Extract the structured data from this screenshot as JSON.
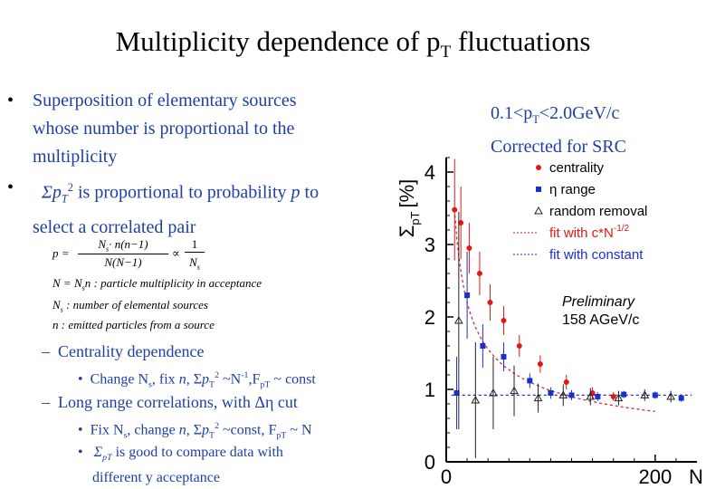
{
  "title": {
    "pre": "Multiplicity dependence of p",
    "sub": "T",
    "post": " fluctuations"
  },
  "bullets": {
    "b1": {
      "dot": "•",
      "line1": "Superposition of elementary sources",
      "line2": "whose number is proportional to the",
      "line3": "multiplicity"
    },
    "b2": {
      "dot": "•",
      "sym": "Σ",
      "p": "p",
      "T": "T",
      "two": "2",
      "rest": " is proportional to probability ",
      "prob": "p",
      "to": " to",
      "line2": "select a correlated pair"
    }
  },
  "formulas": {
    "p_lhs": "p =",
    "p_num": "N",
    "p_num_sub": "s",
    "p_num_rest": "· n(n−1)",
    "p_den": "N(N−1)",
    "p_prop": "∝",
    "p_r_num": "1",
    "p_r_den": "N",
    "p_r_den_sub": "s",
    "N_def": "N = N",
    "N_def_sub": "s",
    "N_def_rest": "n : particle multiplicity in acceptance",
    "Ns_def": "N",
    "Ns_def_sub": "s",
    "Ns_def_rest": " : number of elemental sources",
    "n_def": "n : emitted particles from a source"
  },
  "sub_items": {
    "s1": {
      "dash": "–",
      "text": "Centrality dependence"
    },
    "s1a": {
      "dot": "•",
      "t1": "Change N",
      "t1sub": "s",
      "t2": ", fix ",
      "n": "n",
      "t3": ", Σ",
      "p": "p",
      "T": "T",
      "two": "2",
      "t4": " ~N",
      "m1": "-1",
      "t5": ",F",
      "Fsub": "pT",
      "t6": " ~ const"
    },
    "s2": {
      "dash": "–",
      "text": "Long range correlations, with Δη cut"
    },
    "s2a": {
      "dot": "•",
      "t1": "Fix N",
      "t1sub": "s",
      "t2": ", change ",
      "n": "n",
      "t3": ", Σ",
      "p": "p",
      "T": "T",
      "two": "2",
      "t4": " ~const, F",
      "Fsub": "pT",
      "t5": " ~ N"
    },
    "s2b": {
      "dot": "•",
      "sym": "Σ",
      "sub": "pT",
      "t1": " is good to compare data with",
      "line2": "different y acceptance"
    }
  },
  "note": {
    "l1a": "0.1<p",
    "l1sub": "T",
    "l1b": "<2.0GeV/c",
    "l2": "Corrected for SRC"
  },
  "chart_data": {
    "type": "scatter",
    "ylabel": "Σ",
    "ylabel_sub": "pT",
    "ylabel_unit": "[%]",
    "xlabel": "N",
    "xlim": [
      0,
      240
    ],
    "ylim": [
      0,
      4.2
    ],
    "yticks": [
      "0",
      "1",
      "2",
      "3",
      "4"
    ],
    "xticks": [
      "0",
      "200"
    ],
    "preliminary": "Preliminary",
    "energy": "158 AGeV/c",
    "series": [
      {
        "name": "centrality",
        "color": "#e01818",
        "x": [
          8,
          14,
          22,
          32,
          42,
          55,
          70,
          90,
          115,
          140,
          160
        ],
        "y": [
          3.48,
          3.3,
          2.95,
          2.6,
          2.2,
          1.95,
          1.6,
          1.35,
          1.1,
          0.95,
          0.9
        ],
        "err": [
          0.7,
          0.5,
          0.35,
          0.3,
          0.25,
          0.2,
          0.15,
          0.12,
          0.1,
          0.08,
          0.06
        ]
      },
      {
        "name": "η range",
        "color": "#1a2fd0",
        "x": [
          10,
          20,
          35,
          55,
          80,
          100,
          120,
          145,
          170,
          200,
          225
        ],
        "y": [
          0.95,
          2.3,
          1.6,
          1.45,
          1.12,
          0.95,
          0.92,
          0.9,
          0.93,
          0.92,
          0.88
        ],
        "err": [
          0.5,
          0.6,
          0.3,
          0.2,
          0.1,
          0.08,
          0.07,
          0.06,
          0.05,
          0.05,
          0.05
        ]
      },
      {
        "name": "random removal",
        "color": "#222222",
        "x": [
          12,
          28,
          45,
          65,
          88,
          112,
          138,
          165,
          190,
          215
        ],
        "y": [
          1.95,
          0.85,
          0.95,
          0.98,
          0.88,
          0.92,
          0.9,
          0.88,
          0.92,
          0.9
        ],
        "err": [
          1.5,
          0.8,
          0.5,
          0.35,
          0.2,
          0.15,
          0.12,
          0.1,
          0.08,
          0.08
        ]
      }
    ],
    "fits": [
      {
        "name": "fit with c*N",
        "sup": "-1/2",
        "color": "#e01818"
      },
      {
        "name": "fit with constant",
        "color": "#1a2fd0",
        "value": 0.92
      }
    ]
  }
}
